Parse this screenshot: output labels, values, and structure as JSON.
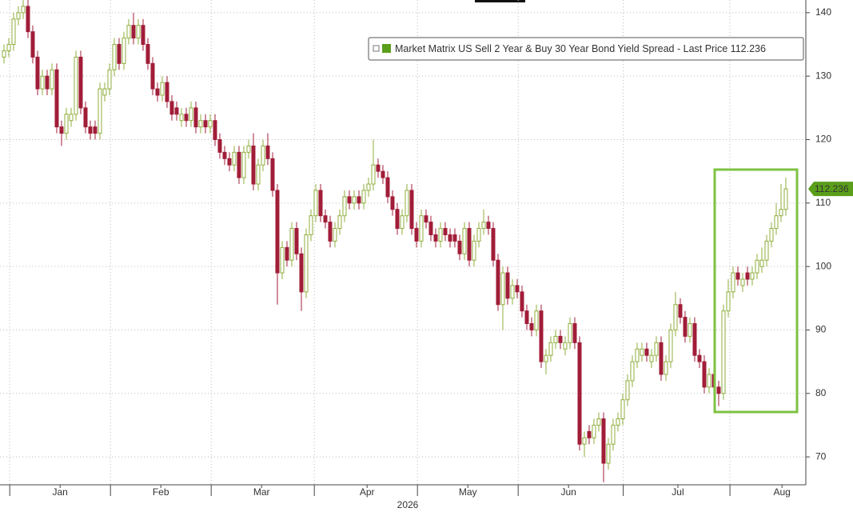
{
  "chart_data": {
    "type": "candlestick",
    "legend": "Market Matrix US Sell 2 Year & Buy 30 Year Bond Yield Spread - Last Price 112.236",
    "x_label": "2026",
    "up_color": "#8fae3c",
    "down_color": "#a11d38",
    "legend_color": "#5a9e1a",
    "grid": true,
    "ylim": [
      65.6,
      142
    ],
    "yticks": [
      70,
      80,
      90,
      100,
      110,
      120,
      130,
      140
    ],
    "xlim": [
      -0.83,
      167.17
    ],
    "xticks": [
      {
        "value": 11.7,
        "label": "Jan"
      },
      {
        "value": 32.7,
        "label": "Feb"
      },
      {
        "value": 53.7,
        "label": "Mar"
      },
      {
        "value": 75.7,
        "label": "Apr"
      },
      {
        "value": 96.7,
        "label": "May"
      },
      {
        "value": 117.7,
        "label": "Jun"
      },
      {
        "value": 140.5,
        "label": "Jul"
      },
      {
        "value": 162.2,
        "label": "Aug"
      }
    ],
    "open": [
      133,
      134,
      135,
      139,
      140,
      141,
      137,
      133,
      128,
      130,
      128,
      131,
      122,
      121,
      123,
      124,
      133,
      125,
      122,
      122,
      121,
      127,
      128,
      131,
      135,
      132,
      136,
      138,
      136,
      138,
      135,
      132,
      128,
      127,
      129,
      126,
      125,
      123,
      124,
      123,
      125,
      122,
      123,
      122,
      123,
      120,
      118,
      117,
      116,
      118,
      114,
      118,
      119,
      113,
      116,
      119,
      117,
      112,
      99,
      103,
      101,
      106,
      102,
      96,
      105,
      108,
      112,
      108,
      107,
      104,
      106,
      108,
      111,
      110,
      111,
      110,
      112,
      113,
      116,
      115,
      114,
      111,
      109,
      106,
      108,
      112,
      106,
      104,
      108,
      107,
      105,
      104,
      106,
      105,
      105,
      104,
      102,
      106,
      101,
      104,
      106,
      107,
      106,
      101,
      94,
      99,
      95,
      97,
      96,
      93,
      91,
      90,
      93,
      85,
      86,
      88,
      89,
      87,
      88,
      91,
      88,
      72,
      74,
      73,
      75,
      76,
      69,
      72,
      75,
      76,
      79,
      82,
      85,
      86,
      87,
      85,
      86,
      88,
      83,
      85,
      90,
      94,
      92,
      89,
      91,
      86,
      85,
      81,
      83,
      81,
      80,
      93,
      96,
      99,
      97,
      99,
      98,
      99,
      100,
      101,
      104,
      106,
      108,
      109
    ],
    "high": [
      135,
      136,
      140,
      141,
      142,
      142,
      138,
      134,
      131,
      131,
      132,
      132,
      123,
      125,
      125,
      134,
      134,
      126,
      123,
      123,
      129,
      129,
      132,
      136,
      136,
      137,
      139,
      140,
      139,
      139,
      136,
      133,
      129,
      130,
      130,
      127,
      126,
      125,
      125,
      126,
      126,
      124,
      124,
      124,
      124,
      121,
      119,
      118,
      119,
      119,
      119,
      120,
      121,
      117,
      120,
      121,
      118,
      113,
      104,
      104,
      107,
      107,
      103,
      106,
      109,
      113,
      113,
      109,
      108,
      107,
      109,
      112,
      112,
      112,
      112,
      113,
      114,
      120,
      117,
      116,
      115,
      112,
      110,
      109,
      113,
      113,
      107,
      109,
      109,
      108,
      106,
      107,
      107,
      106,
      106,
      105,
      107,
      107,
      105,
      107,
      109,
      108,
      107,
      102,
      100,
      100,
      98,
      98,
      97,
      94,
      92,
      94,
      94,
      87,
      89,
      90,
      90,
      89,
      92,
      92,
      89,
      74,
      75,
      76,
      77,
      77,
      73,
      76,
      77,
      80,
      83,
      86,
      88,
      88,
      88,
      87,
      89,
      89,
      86,
      91,
      96,
      95,
      93,
      92,
      92,
      87,
      86,
      84,
      84,
      82,
      94,
      98,
      100,
      100,
      99,
      100,
      100,
      102,
      103,
      105,
      107,
      110,
      113,
      114
    ],
    "low": [
      132,
      133,
      134,
      138,
      139,
      136,
      132,
      127,
      127,
      127,
      127,
      121,
      119,
      120,
      122,
      123,
      124,
      121,
      120,
      120,
      120,
      126,
      127,
      130,
      131,
      131,
      135,
      135,
      135,
      134,
      131,
      127,
      126,
      126,
      125,
      123,
      123,
      122,
      122,
      122,
      121,
      121,
      121,
      121,
      119,
      117,
      116,
      115,
      115,
      113,
      113,
      117,
      112,
      112,
      115,
      116,
      111,
      94,
      98,
      100,
      100,
      101,
      93,
      95,
      104,
      107,
      107,
      106,
      103,
      103,
      105,
      107,
      109,
      109,
      109,
      109,
      111,
      112,
      114,
      113,
      110,
      108,
      105,
      105,
      107,
      105,
      103,
      103,
      106,
      104,
      103,
      103,
      104,
      103,
      103,
      101,
      101,
      100,
      100,
      103,
      105,
      105,
      100,
      93,
      90,
      94,
      94,
      95,
      92,
      90,
      89,
      89,
      84,
      83,
      85,
      87,
      87,
      86,
      87,
      87,
      71,
      70,
      72,
      72,
      74,
      66,
      68,
      71,
      74,
      75,
      78,
      81,
      84,
      85,
      85,
      84,
      85,
      82,
      82,
      84,
      89,
      91,
      88,
      88,
      85,
      84,
      80,
      80,
      80,
      78,
      79,
      92,
      95,
      97,
      96,
      97,
      97,
      98,
      99,
      100,
      103,
      105,
      107,
      108
    ],
    "close": [
      134,
      135,
      139,
      140,
      141,
      137,
      133,
      128,
      130,
      128,
      131,
      122,
      121,
      124,
      124,
      133,
      125,
      122,
      121,
      121,
      128,
      128,
      131,
      135,
      132,
      136,
      138,
      136,
      138,
      135,
      132,
      128,
      127,
      129,
      126,
      124,
      124,
      124,
      123,
      125,
      122,
      123,
      122,
      123,
      120,
      118,
      117,
      116,
      118,
      114,
      118,
      119,
      113,
      116,
      119,
      117,
      112,
      99,
      103,
      101,
      106,
      102,
      96,
      105,
      108,
      112,
      108,
      107,
      104,
      106,
      108,
      111,
      110,
      111,
      110,
      112,
      113,
      116,
      115,
      114,
      111,
      109,
      106,
      108,
      112,
      106,
      104,
      108,
      107,
      105,
      104,
      106,
      105,
      104,
      104,
      102,
      106,
      101,
      104,
      106,
      107,
      106,
      101,
      94,
      99,
      95,
      97,
      96,
      93,
      91,
      90,
      93,
      85,
      86,
      88,
      89,
      88,
      88,
      91,
      88,
      72,
      73,
      73,
      75,
      76,
      69,
      72,
      75,
      76,
      79,
      82,
      85,
      87,
      87,
      86,
      86,
      88,
      83,
      85,
      90,
      94,
      92,
      89,
      91,
      86,
      85,
      81,
      83,
      81,
      80,
      93,
      96,
      99,
      98,
      98,
      98,
      99,
      101,
      101,
      104,
      106,
      108,
      109,
      112.236
    ]
  }
}
